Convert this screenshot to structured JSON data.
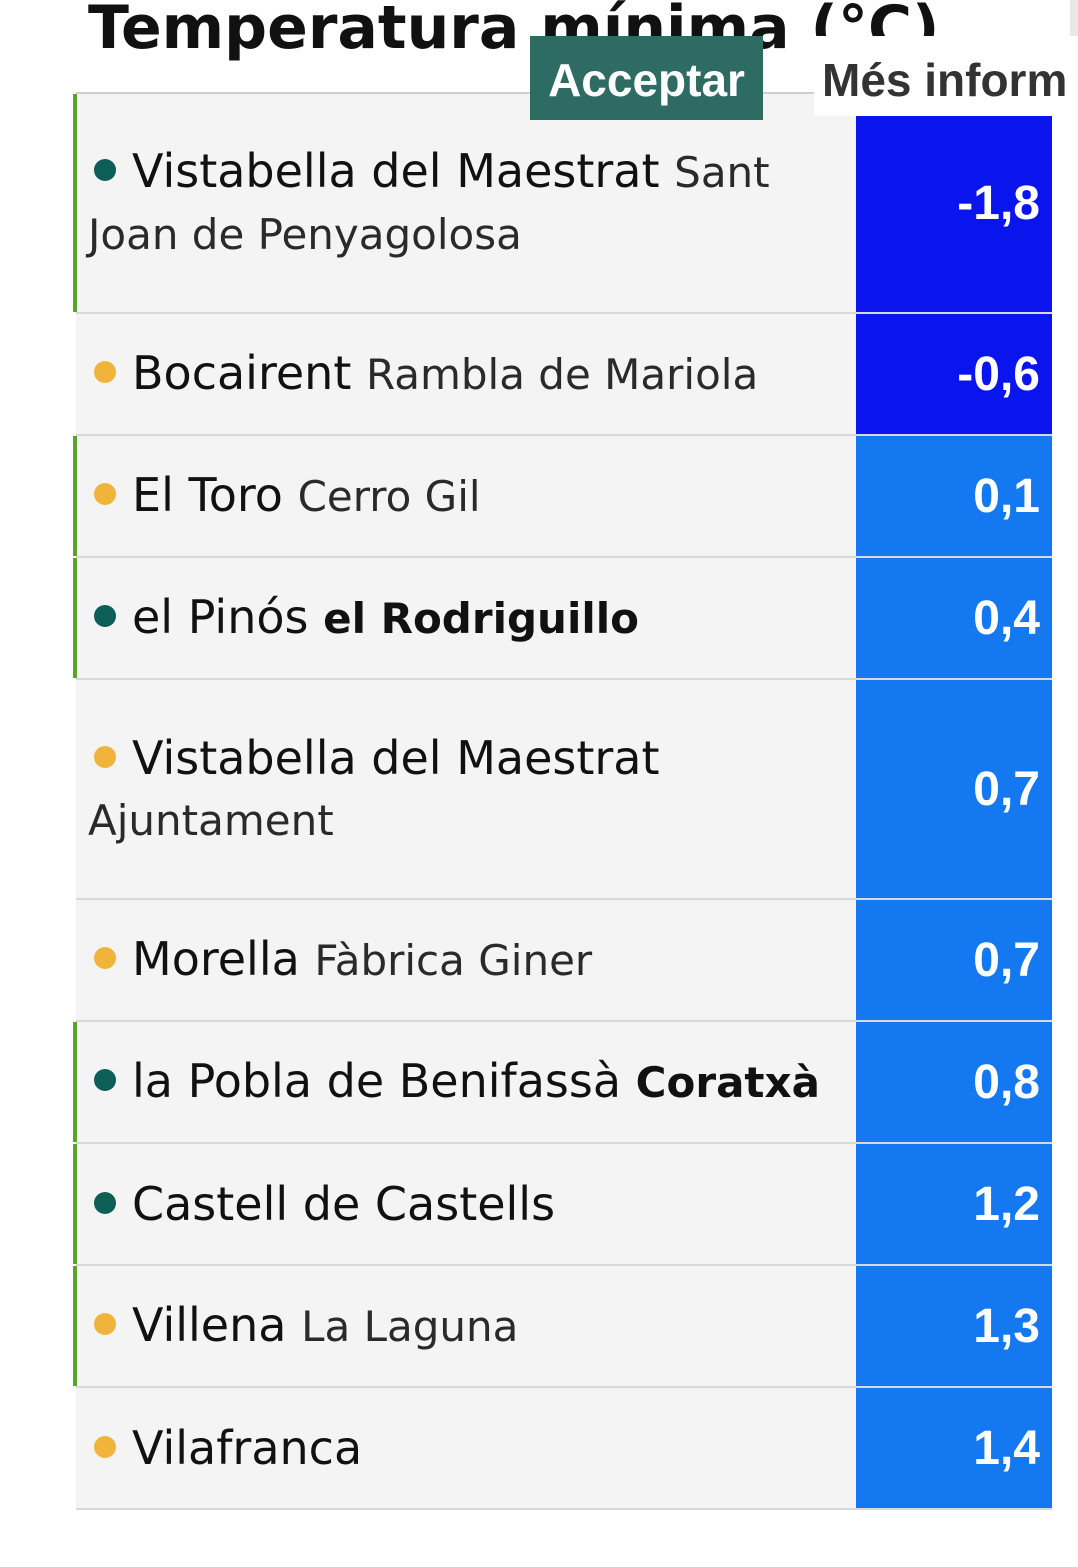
{
  "page": {
    "title": "Temperatura mínima (°C)"
  },
  "cookie_banner": {
    "accept_label": "Acceptar",
    "more_info_label": "Més inform"
  },
  "colors": {
    "dot_official": "#0e5e58",
    "dot_amateur": "#f0b43c",
    "value_dark_blue": "#0a14ec",
    "value_blue": "#1478f0",
    "row_marker_green": "#5aa32f"
  },
  "rows": [
    {
      "town": "Vistabella del Maestrat",
      "station": "Sant Joan de Penyagolosa",
      "station_bold": false,
      "value": "-1,8",
      "dot": "dot_official",
      "value_color": "value_dark_blue",
      "marked": true
    },
    {
      "town": "Bocairent",
      "station": "Rambla de Mariola",
      "station_bold": false,
      "value": "-0,6",
      "dot": "dot_amateur",
      "value_color": "value_dark_blue",
      "marked": false
    },
    {
      "town": "El Toro",
      "station": "Cerro Gil",
      "station_bold": false,
      "value": "0,1",
      "dot": "dot_amateur",
      "value_color": "value_blue",
      "marked": true
    },
    {
      "town": "el Pinós",
      "station": "el Rodriguillo",
      "station_bold": true,
      "value": "0,4",
      "dot": "dot_official",
      "value_color": "value_blue",
      "marked": true
    },
    {
      "town": "Vistabella del Maestrat",
      "station": "Ajuntament",
      "station_bold": false,
      "value": "0,7",
      "dot": "dot_amateur",
      "value_color": "value_blue",
      "marked": false
    },
    {
      "town": "Morella",
      "station": "Fàbrica Giner",
      "station_bold": false,
      "value": "0,7",
      "dot": "dot_amateur",
      "value_color": "value_blue",
      "marked": false
    },
    {
      "town": "la Pobla de Benifassà",
      "station": "Coratxà",
      "station_bold": true,
      "value": "0,8",
      "dot": "dot_official",
      "value_color": "value_blue",
      "marked": true
    },
    {
      "town": "Castell de Castells",
      "station": "",
      "station_bold": false,
      "value": "1,2",
      "dot": "dot_official",
      "value_color": "value_blue",
      "marked": true
    },
    {
      "town": "Villena",
      "station": "La Laguna",
      "station_bold": false,
      "value": "1,3",
      "dot": "dot_amateur",
      "value_color": "value_blue",
      "marked": true
    },
    {
      "town": "Vilafranca",
      "station": "",
      "station_bold": false,
      "value": "1,4",
      "dot": "dot_amateur",
      "value_color": "value_blue",
      "marked": false
    }
  ]
}
